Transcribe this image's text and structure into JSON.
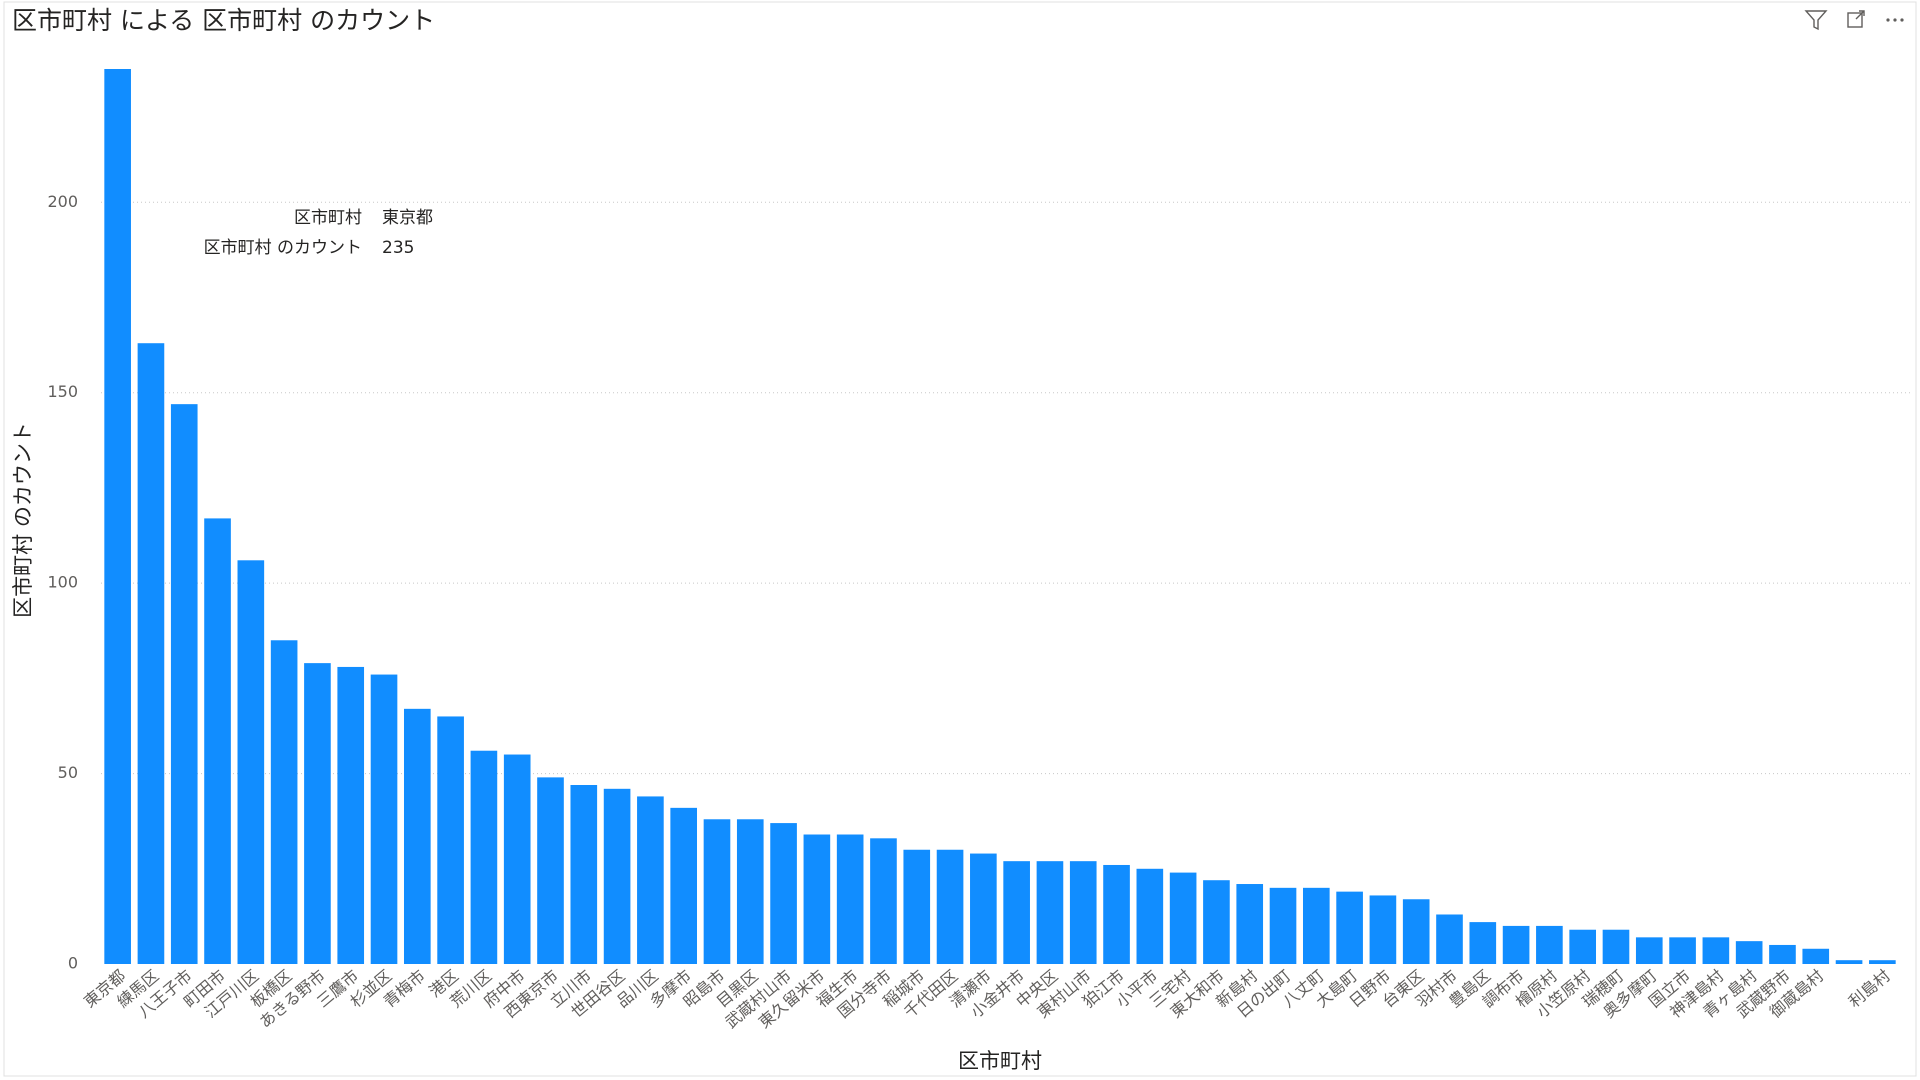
{
  "chart_data": {
    "type": "bar",
    "title": "区市町村 による 区市町村 のカウント",
    "x_label": "区市町村",
    "y_label": "区市町村 のカウント",
    "color": "#118dff",
    "grid": true,
    "ylim": [
      0,
      235
    ],
    "yticks": [
      0,
      50,
      100,
      150,
      200
    ],
    "categories": [
      "東京都",
      "練馬区",
      "八王子市",
      "町田市",
      "江戸川区",
      "板橋区",
      "あきる野市",
      "三鷹市",
      "杉並区",
      "青梅市",
      "港区",
      "荒川区",
      "府中市",
      "西東京市",
      "立川市",
      "世田谷区",
      "品川区",
      "多摩市",
      "昭島市",
      "目黒区",
      "武蔵村山市",
      "東久留米市",
      "福生市",
      "国分寺市",
      "稲城市",
      "千代田区",
      "清瀬市",
      "小金井市",
      "中央区",
      "東村山市",
      "狛江市",
      "小平市",
      "三宅村",
      "東大和市",
      "新島村",
      "日の出町",
      "八丈町",
      "大島町",
      "日野市",
      "台東区",
      "羽村市",
      "豊島区",
      "調布市",
      "檜原村",
      "小笠原村",
      "瑞穂町",
      "奥多摩町",
      "国立市",
      "神津島村",
      "青ヶ島村",
      "武蔵野市",
      "御蔵島村",
      null,
      "利島村"
    ],
    "values": [
      235,
      163,
      147,
      117,
      106,
      85,
      79,
      78,
      76,
      67,
      65,
      56,
      55,
      49,
      47,
      46,
      44,
      41,
      38,
      38,
      37,
      34,
      34,
      33,
      30,
      30,
      29,
      27,
      27,
      27,
      26,
      25,
      24,
      22,
      21,
      20,
      20,
      19,
      18,
      17,
      13,
      11,
      10,
      10,
      9,
      9,
      7,
      7,
      7,
      6,
      5,
      4,
      1,
      1
    ],
    "tooltip": {
      "category_label": "区市町村",
      "category": "東京都",
      "value_label": "区市町村 のカウント",
      "value": 235
    }
  }
}
